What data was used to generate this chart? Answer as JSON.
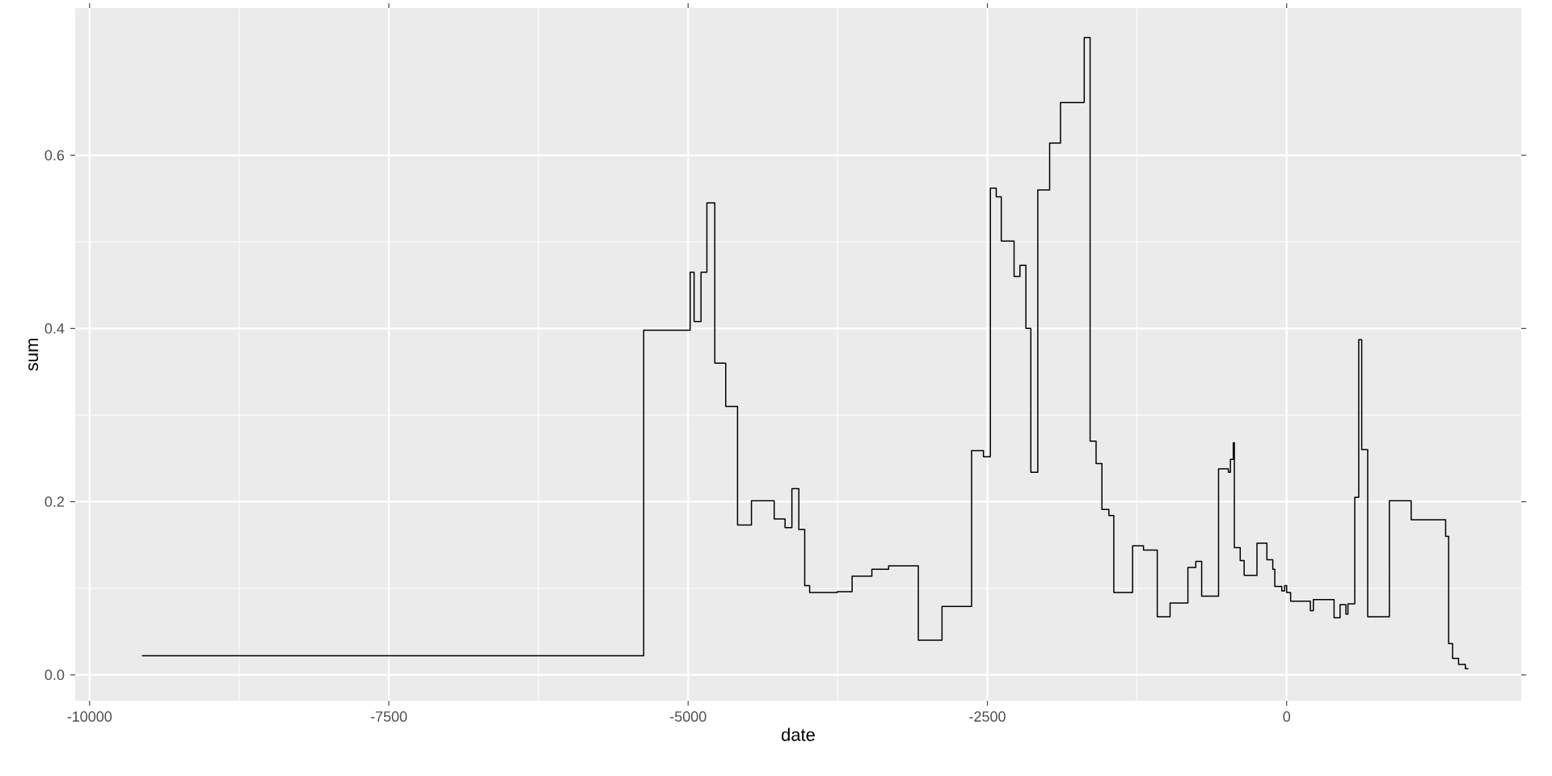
{
  "chart_data": {
    "type": "step",
    "xlabel": "date",
    "ylabel": "sum",
    "x": [
      -9562,
      -5371,
      -4983,
      -4950,
      -4892,
      -4843,
      -4777,
      -4686,
      -4587,
      -4471,
      -4281,
      -4190,
      -4133,
      -4075,
      -4026,
      -3985,
      -3754,
      -3630,
      -3465,
      -3325,
      -3077,
      -2879,
      -2632,
      -2533,
      -2475,
      -2426,
      -2384,
      -2277,
      -2228,
      -2178,
      -2137,
      -2079,
      -1980,
      -1889,
      -1691,
      -1642,
      -1592,
      -1543,
      -1485,
      -1444,
      -1287,
      -1196,
      -1081,
      -974,
      -825,
      -759,
      -710,
      -569,
      -487,
      -470,
      -446,
      -437,
      -388,
      -355,
      -248,
      -165,
      -116,
      -99,
      -41,
      -17,
      0,
      33,
      198,
      223,
      396,
      446,
      495,
      512,
      569,
      602,
      627,
      677,
      858,
      1040,
      1328,
      1353,
      1386,
      1436,
      1493,
      1518
    ],
    "values": [
      0.022,
      0.398,
      0.465,
      0.408,
      0.465,
      0.545,
      0.36,
      0.31,
      0.173,
      0.201,
      0.18,
      0.17,
      0.215,
      0.168,
      0.103,
      0.095,
      0.096,
      0.114,
      0.122,
      0.126,
      0.04,
      0.079,
      0.259,
      0.252,
      0.562,
      0.552,
      0.501,
      0.46,
      0.473,
      0.4,
      0.234,
      0.56,
      0.614,
      0.661,
      0.736,
      0.27,
      0.244,
      0.191,
      0.184,
      0.095,
      0.149,
      0.144,
      0.067,
      0.083,
      0.124,
      0.131,
      0.091,
      0.238,
      0.234,
      0.249,
      0.268,
      0.147,
      0.132,
      0.115,
      0.152,
      0.133,
      0.122,
      0.102,
      0.097,
      0.103,
      0.095,
      0.085,
      0.074,
      0.087,
      0.066,
      0.081,
      0.07,
      0.082,
      0.205,
      0.387,
      0.26,
      0.067,
      0.201,
      0.179,
      0.16,
      0.036,
      0.019,
      0.012,
      0.007,
      0.007
    ],
    "color": "#000000",
    "xlim": [
      -10120,
      1960
    ],
    "ylim": [
      -0.03,
      0.77
    ],
    "xticks": [
      -10000,
      -7500,
      -5000,
      -2500,
      0
    ],
    "yticks": [
      {
        "value": 0,
        "label": "0.0"
      },
      {
        "value": 0.2,
        "label": "0.2"
      },
      {
        "value": 0.4,
        "label": "0.4"
      },
      {
        "value": 0.6,
        "label": "0.6"
      }
    ],
    "grid": true
  }
}
